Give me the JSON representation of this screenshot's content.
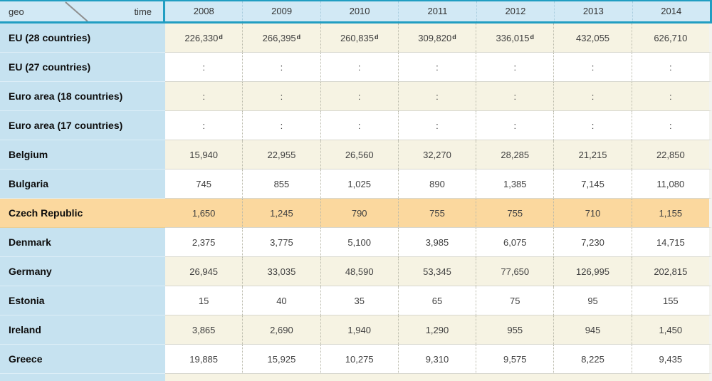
{
  "header": {
    "row_dimension": "geo",
    "col_dimension": "time",
    "years": [
      "2008",
      "2009",
      "2010",
      "2011",
      "2012",
      "2013",
      "2014"
    ]
  },
  "rows": [
    {
      "label": "EU (28 countries)",
      "values": [
        "226,330",
        "266,395",
        "260,835",
        "309,820",
        "336,015",
        "432,055",
        "626,710"
      ],
      "flags": [
        "d",
        "d",
        "d",
        "d",
        "d",
        "",
        ""
      ],
      "highlight": false
    },
    {
      "label": "EU (27 countries)",
      "values": [
        ":",
        ":",
        ":",
        ":",
        ":",
        ":",
        ":"
      ],
      "flags": [],
      "highlight": false
    },
    {
      "label": "Euro area (18 countries)",
      "values": [
        ":",
        ":",
        ":",
        ":",
        ":",
        ":",
        ":"
      ],
      "flags": [],
      "highlight": false
    },
    {
      "label": "Euro area (17 countries)",
      "values": [
        ":",
        ":",
        ":",
        ":",
        ":",
        ":",
        ":"
      ],
      "flags": [],
      "highlight": false
    },
    {
      "label": "Belgium",
      "values": [
        "15,940",
        "22,955",
        "26,560",
        "32,270",
        "28,285",
        "21,215",
        "22,850"
      ],
      "flags": [],
      "highlight": false
    },
    {
      "label": "Bulgaria",
      "values": [
        "745",
        "855",
        "1,025",
        "890",
        "1,385",
        "7,145",
        "11,080"
      ],
      "flags": [],
      "highlight": false
    },
    {
      "label": "Czech Republic",
      "values": [
        "1,650",
        "1,245",
        "790",
        "755",
        "755",
        "710",
        "1,155"
      ],
      "flags": [],
      "highlight": true
    },
    {
      "label": "Denmark",
      "values": [
        "2,375",
        "3,775",
        "5,100",
        "3,985",
        "6,075",
        "7,230",
        "14,715"
      ],
      "flags": [],
      "highlight": false
    },
    {
      "label": "Germany",
      "values": [
        "26,945",
        "33,035",
        "48,590",
        "53,345",
        "77,650",
        "126,995",
        "202,815"
      ],
      "flags": [],
      "highlight": false
    },
    {
      "label": "Estonia",
      "values": [
        "15",
        "40",
        "35",
        "65",
        "75",
        "95",
        "155"
      ],
      "flags": [],
      "highlight": false
    },
    {
      "label": "Ireland",
      "values": [
        "3,865",
        "2,690",
        "1,940",
        "1,290",
        "955",
        "945",
        "1,450"
      ],
      "flags": [],
      "highlight": false
    },
    {
      "label": "Greece",
      "values": [
        "19,885",
        "15,925",
        "10,275",
        "9,310",
        "9,575",
        "8,225",
        "9,435"
      ],
      "flags": [],
      "highlight": false
    }
  ],
  "colors": {
    "border_teal": "#219ec2",
    "header_bg": "#d2e9f5",
    "label_bg": "#c6e2f0",
    "row_beige": "#f6f3e3",
    "row_white": "#ffffff",
    "highlight": "#fbd89e"
  }
}
